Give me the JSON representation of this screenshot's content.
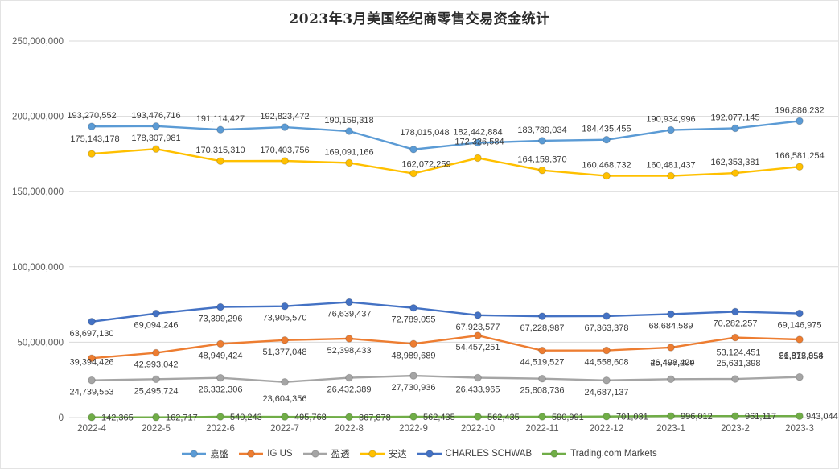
{
  "title": "2023年3月美国经纪商零售交易资金统计",
  "chart_data": {
    "type": "line",
    "title": "2023年3月美国经纪商零售交易资金统计",
    "categories": [
      "2022-4",
      "2022-5",
      "2022-6",
      "2022-7",
      "2022-8",
      "2022-9",
      "2022-10",
      "2022-11",
      "2022-12",
      "2023-1",
      "2023-2",
      "2023-3"
    ],
    "y_axis": {
      "min": 0,
      "max": 250000000,
      "step": 50000000,
      "grid": true,
      "tick_labels": [
        "0",
        "50,000,000",
        "100,000,000",
        "150,000,000",
        "200,000,000",
        "250,000,000"
      ]
    },
    "legend_position": "bottom",
    "data_labels": true,
    "series": [
      {
        "name": "嘉盛",
        "color": "#5B9BD5",
        "label_placement": "above",
        "values": [
          193270552,
          193476716,
          191114427,
          192823472,
          190159318,
          178015048,
          182442884,
          183789034,
          184435455,
          190934996,
          192077145,
          196886232
        ]
      },
      {
        "name": "IG US",
        "color": "#ED7D31",
        "label_placement": "below",
        "values": [
          39394426,
          42993042,
          48949424,
          51377048,
          52398433,
          48989689,
          54457251,
          44519527,
          44558608,
          46498424,
          53124451,
          51815858
        ]
      },
      {
        "name": "盈透",
        "color": "#A5A5A5",
        "label_placement": "below",
        "values": [
          24739553,
          25495724,
          26332306,
          23604356,
          26432389,
          27730936,
          26433965,
          25808736,
          24687137,
          25497209,
          25631398,
          26872914
        ]
      },
      {
        "name": "安达",
        "color": "#FFC000",
        "label_placement": "above",
        "values": [
          175143178,
          178307981,
          170315310,
          170403756,
          169091166,
          162072259,
          172326584,
          164159370,
          160468732,
          160481437,
          162353381,
          166581254
        ]
      },
      {
        "name": "CHARLES SCHWAB",
        "color": "#4472C4",
        "label_placement": "below",
        "values": [
          63697130,
          69094246,
          73399296,
          73905570,
          76639437,
          72789055,
          67923577,
          67228987,
          67363378,
          68684589,
          70282257,
          69146975
        ]
      },
      {
        "name": "Trading.com Markets",
        "color": "#70AD47",
        "label_placement": "right",
        "values": [
          142365,
          162717,
          540243,
          495768,
          367878,
          562435,
          562435,
          590991,
          701031,
          996012,
          961117,
          943044
        ]
      }
    ]
  }
}
